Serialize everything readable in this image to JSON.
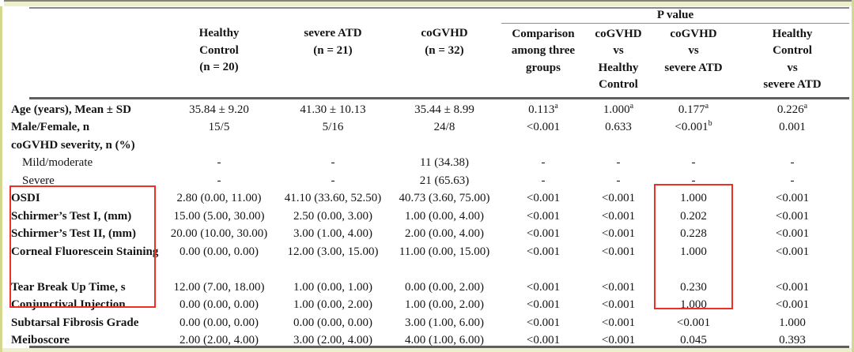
{
  "colors": {
    "edge_strip": "#d4d88e",
    "edge_band": "#eef0cc",
    "rule_gray": "#5f5f5f",
    "highlight_red": "#ee3024"
  },
  "table": {
    "p_value_label": "P value",
    "group_headers": [
      {
        "label": "Healthy\nControl\n(n = 20)"
      },
      {
        "label": "severe ATD\n(n = 21)"
      },
      {
        "label": "coGVHD\n(n = 32)"
      },
      {
        "label": "Comparison\namong three\ngroups"
      },
      {
        "label": "coGVHD\nvs\nHealthy\nControl"
      },
      {
        "label": "coGVHD\nvs\nsevere ATD"
      },
      {
        "label": "Healthy\nControl\nvs\nsevere ATD"
      }
    ],
    "rows": [
      {
        "label": "Age (years), Mean ± SD",
        "values": [
          "35.84 ± 9.20",
          "41.30 ± 10.13",
          "35.44 ± 8.99",
          "0.113^a",
          "1.000^a",
          "0.177^a",
          "0.226^a"
        ]
      },
      {
        "label": "Male/Female, n",
        "values": [
          "15/5",
          "5/16",
          "24/8",
          "<0.001",
          "0.633",
          "<0.001^b",
          "0.001"
        ]
      },
      {
        "label": "coGVHD severity, n (%)",
        "values": [
          "",
          "",
          "",
          "",
          "",
          "",
          ""
        ]
      },
      {
        "label": "Mild/moderate",
        "indent": true,
        "values": [
          "-",
          "-",
          "11 (34.38)",
          "-",
          "-",
          "-",
          "-"
        ]
      },
      {
        "label": "Severe",
        "indent": true,
        "values": [
          "-",
          "-",
          "21 (65.63)",
          "-",
          "-",
          "-",
          "-"
        ]
      },
      {
        "label": "OSDI",
        "values": [
          "2.80 (0.00, 11.00)",
          "41.10 (33.60, 52.50)",
          "40.73 (3.60, 75.00)",
          "<0.001",
          "<0.001",
          "1.000",
          "<0.001"
        ]
      },
      {
        "label": "Schirmer’s Test I, (mm)",
        "values": [
          "15.00 (5.00, 30.00)",
          "2.50 (0.00, 3.00)",
          "1.00 (0.00, 4.00)",
          "<0.001",
          "<0.001",
          "0.202",
          "<0.001"
        ]
      },
      {
        "label": "Schirmer’s Test II, (mm)",
        "values": [
          "20.00 (10.00, 30.00)",
          "3.00 (1.00, 4.00)",
          "2.00 (0.00, 4.00)",
          "<0.001",
          "<0.001",
          "0.228",
          "<0.001"
        ]
      },
      {
        "label": "Corneal Fluorescein Staining",
        "two_line": true,
        "values": [
          "0.00 (0.00, 0.00)",
          "12.00 (3.00, 15.00)",
          "11.00 (0.00, 15.00)",
          "<0.001",
          "<0.001",
          "1.000",
          "<0.001"
        ]
      },
      {
        "label": "Tear Break Up Time, s",
        "values": [
          "12.00 (7.00, 18.00)",
          "1.00 (0.00, 1.00)",
          "0.00 (0.00, 2.00)",
          "<0.001",
          "<0.001",
          "0.230",
          "<0.001"
        ]
      },
      {
        "label": "Conjunctival Injection",
        "values": [
          "0.00 (0.00, 0.00)",
          "1.00 (0.00, 2.00)",
          "1.00 (0.00, 2.00)",
          "<0.001",
          "<0.001",
          "1.000",
          "<0.001"
        ]
      },
      {
        "label": "Subtarsal Fibrosis Grade",
        "values": [
          "0.00 (0.00, 0.00)",
          "0.00 (0.00, 0.00)",
          "3.00 (1.00, 6.00)",
          "<0.001",
          "<0.001",
          "<0.001",
          "1.000"
        ]
      },
      {
        "label": "Meiboscore",
        "values": [
          "2.00 (2.00, 4.00)",
          "3.00 (2.00, 4.00)",
          "4.00 (1.00, 6.00)",
          "<0.001",
          "<0.001",
          "0.045",
          "0.393"
        ]
      }
    ]
  },
  "annotations": {
    "highlight_boxes": [
      {
        "target": "row labels OSDI through Conjunctival Injection"
      },
      {
        "target": "coGVHD vs severe ATD p-values OSDI through Conjunctival Injection"
      }
    ]
  }
}
